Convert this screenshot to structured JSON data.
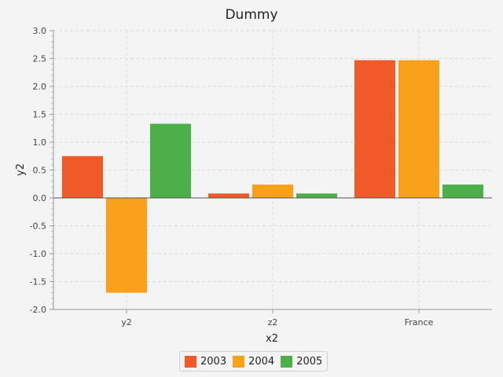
{
  "chart_data": {
    "type": "bar",
    "title": "Dummy",
    "xlabel": "x2",
    "ylabel": "y2",
    "categories": [
      "y2",
      "z2",
      "France"
    ],
    "series": [
      {
        "name": "2003",
        "color": "#f05a28",
        "values": [
          0.75,
          0.08,
          2.47
        ]
      },
      {
        "name": "2004",
        "color": "#f9a11b",
        "values": [
          -1.7,
          0.24,
          2.47
        ]
      },
      {
        "name": "2005",
        "color": "#4daf4a",
        "values": [
          1.33,
          0.08,
          0.24
        ]
      }
    ],
    "ylim": [
      -2.0,
      3.0
    ],
    "yticks": [
      "-2.0",
      "-1.5",
      "-1.0",
      "-0.5",
      "0.0",
      "0.5",
      "1.0",
      "1.5",
      "2.0",
      "2.5",
      "3.0"
    ],
    "grid": true,
    "legend_position": "bottom"
  }
}
